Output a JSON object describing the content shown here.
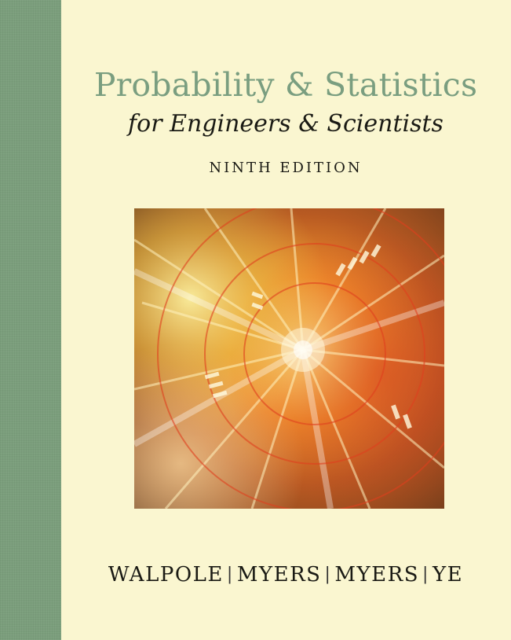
{
  "cover": {
    "title_main": "Probability & Statistics",
    "title_sub": "for Engineers & Scientists",
    "edition": "NINTH EDITION",
    "authors": [
      "WALPOLE",
      "MYERS",
      "MYERS",
      "YE"
    ],
    "author_separator": "|",
    "colors": {
      "background": "#faf6d0",
      "spine_band": "#7b9e7c",
      "title_main": "#7a9e80",
      "text_dark": "#1a1a14"
    },
    "artwork": "abstract-light-burst-image"
  }
}
